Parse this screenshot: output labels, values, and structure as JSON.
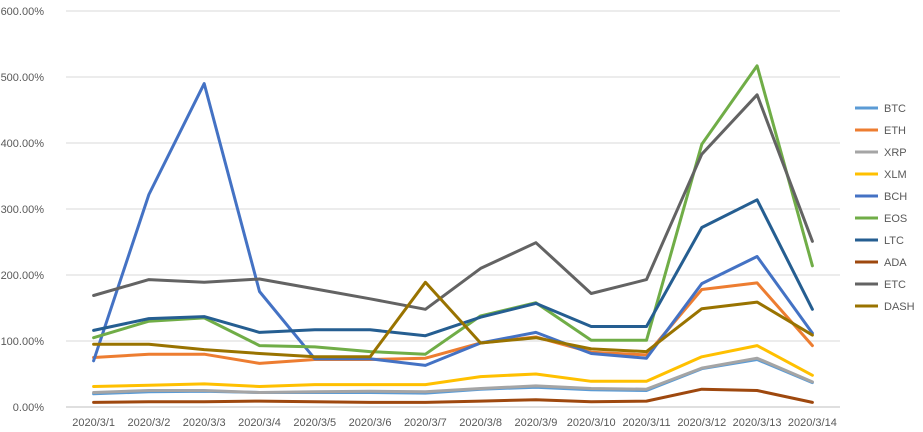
{
  "chart_data": {
    "type": "line",
    "title": "",
    "xlabel": "",
    "ylabel": "",
    "categories": [
      "2020/3/1",
      "2020/3/2",
      "2020/3/3",
      "2020/3/4",
      "2020/3/5",
      "2020/3/6",
      "2020/3/7",
      "2020/3/8",
      "2020/3/9",
      "2020/3/10",
      "2020/3/11",
      "2020/3/12",
      "2020/3/13",
      "2020/3/14"
    ],
    "ylim": [
      0,
      600
    ],
    "yticks": [
      "0.00%",
      "100.00%",
      "200.00%",
      "300.00%",
      "400.00%",
      "500.00%",
      "600.00%"
    ],
    "grid": true,
    "legend_position": "right",
    "series": [
      {
        "name": "BTC",
        "color": "#5B9BD5",
        "values": [
          20,
          23,
          24,
          22,
          22,
          22,
          21,
          27,
          30,
          26,
          25,
          58,
          72,
          37
        ]
      },
      {
        "name": "ETH",
        "color": "#ED7D31",
        "values": [
          75,
          80,
          80,
          66,
          72,
          72,
          74,
          97,
          106,
          83,
          79,
          178,
          188,
          93
        ]
      },
      {
        "name": "XRP",
        "color": "#A5A5A5",
        "values": [
          22,
          25,
          25,
          22,
          23,
          24,
          23,
          28,
          32,
          28,
          27,
          59,
          74,
          38
        ]
      },
      {
        "name": "XLM",
        "color": "#FFC000",
        "values": [
          31,
          33,
          35,
          31,
          34,
          34,
          34,
          46,
          50,
          39,
          39,
          76,
          93,
          48
        ]
      },
      {
        "name": "BCH",
        "color": "#4472C4",
        "values": [
          70,
          322,
          490,
          175,
          73,
          73,
          63,
          97,
          113,
          81,
          74,
          187,
          228,
          112
        ]
      },
      {
        "name": "EOS",
        "color": "#70AD47",
        "values": [
          105,
          130,
          135,
          93,
          91,
          84,
          80,
          138,
          158,
          101,
          101,
          398,
          517,
          214
        ]
      },
      {
        "name": "LTC",
        "color": "#255E91",
        "values": [
          116,
          134,
          137,
          113,
          117,
          117,
          108,
          136,
          157,
          122,
          122,
          272,
          314,
          148
        ]
      },
      {
        "name": "ADA",
        "color": "#9E480E",
        "values": [
          7,
          8,
          8,
          9,
          8,
          7,
          7,
          9,
          11,
          8,
          9,
          27,
          25,
          7
        ]
      },
      {
        "name": "ETC",
        "color": "#636363",
        "values": [
          169,
          193,
          189,
          194,
          179,
          164,
          148,
          210,
          249,
          172,
          193,
          383,
          473,
          251
        ]
      },
      {
        "name": "DASH",
        "color": "#997300",
        "values": [
          95,
          95,
          87,
          81,
          76,
          76,
          189,
          97,
          105,
          88,
          84,
          149,
          159,
          109
        ]
      }
    ]
  }
}
